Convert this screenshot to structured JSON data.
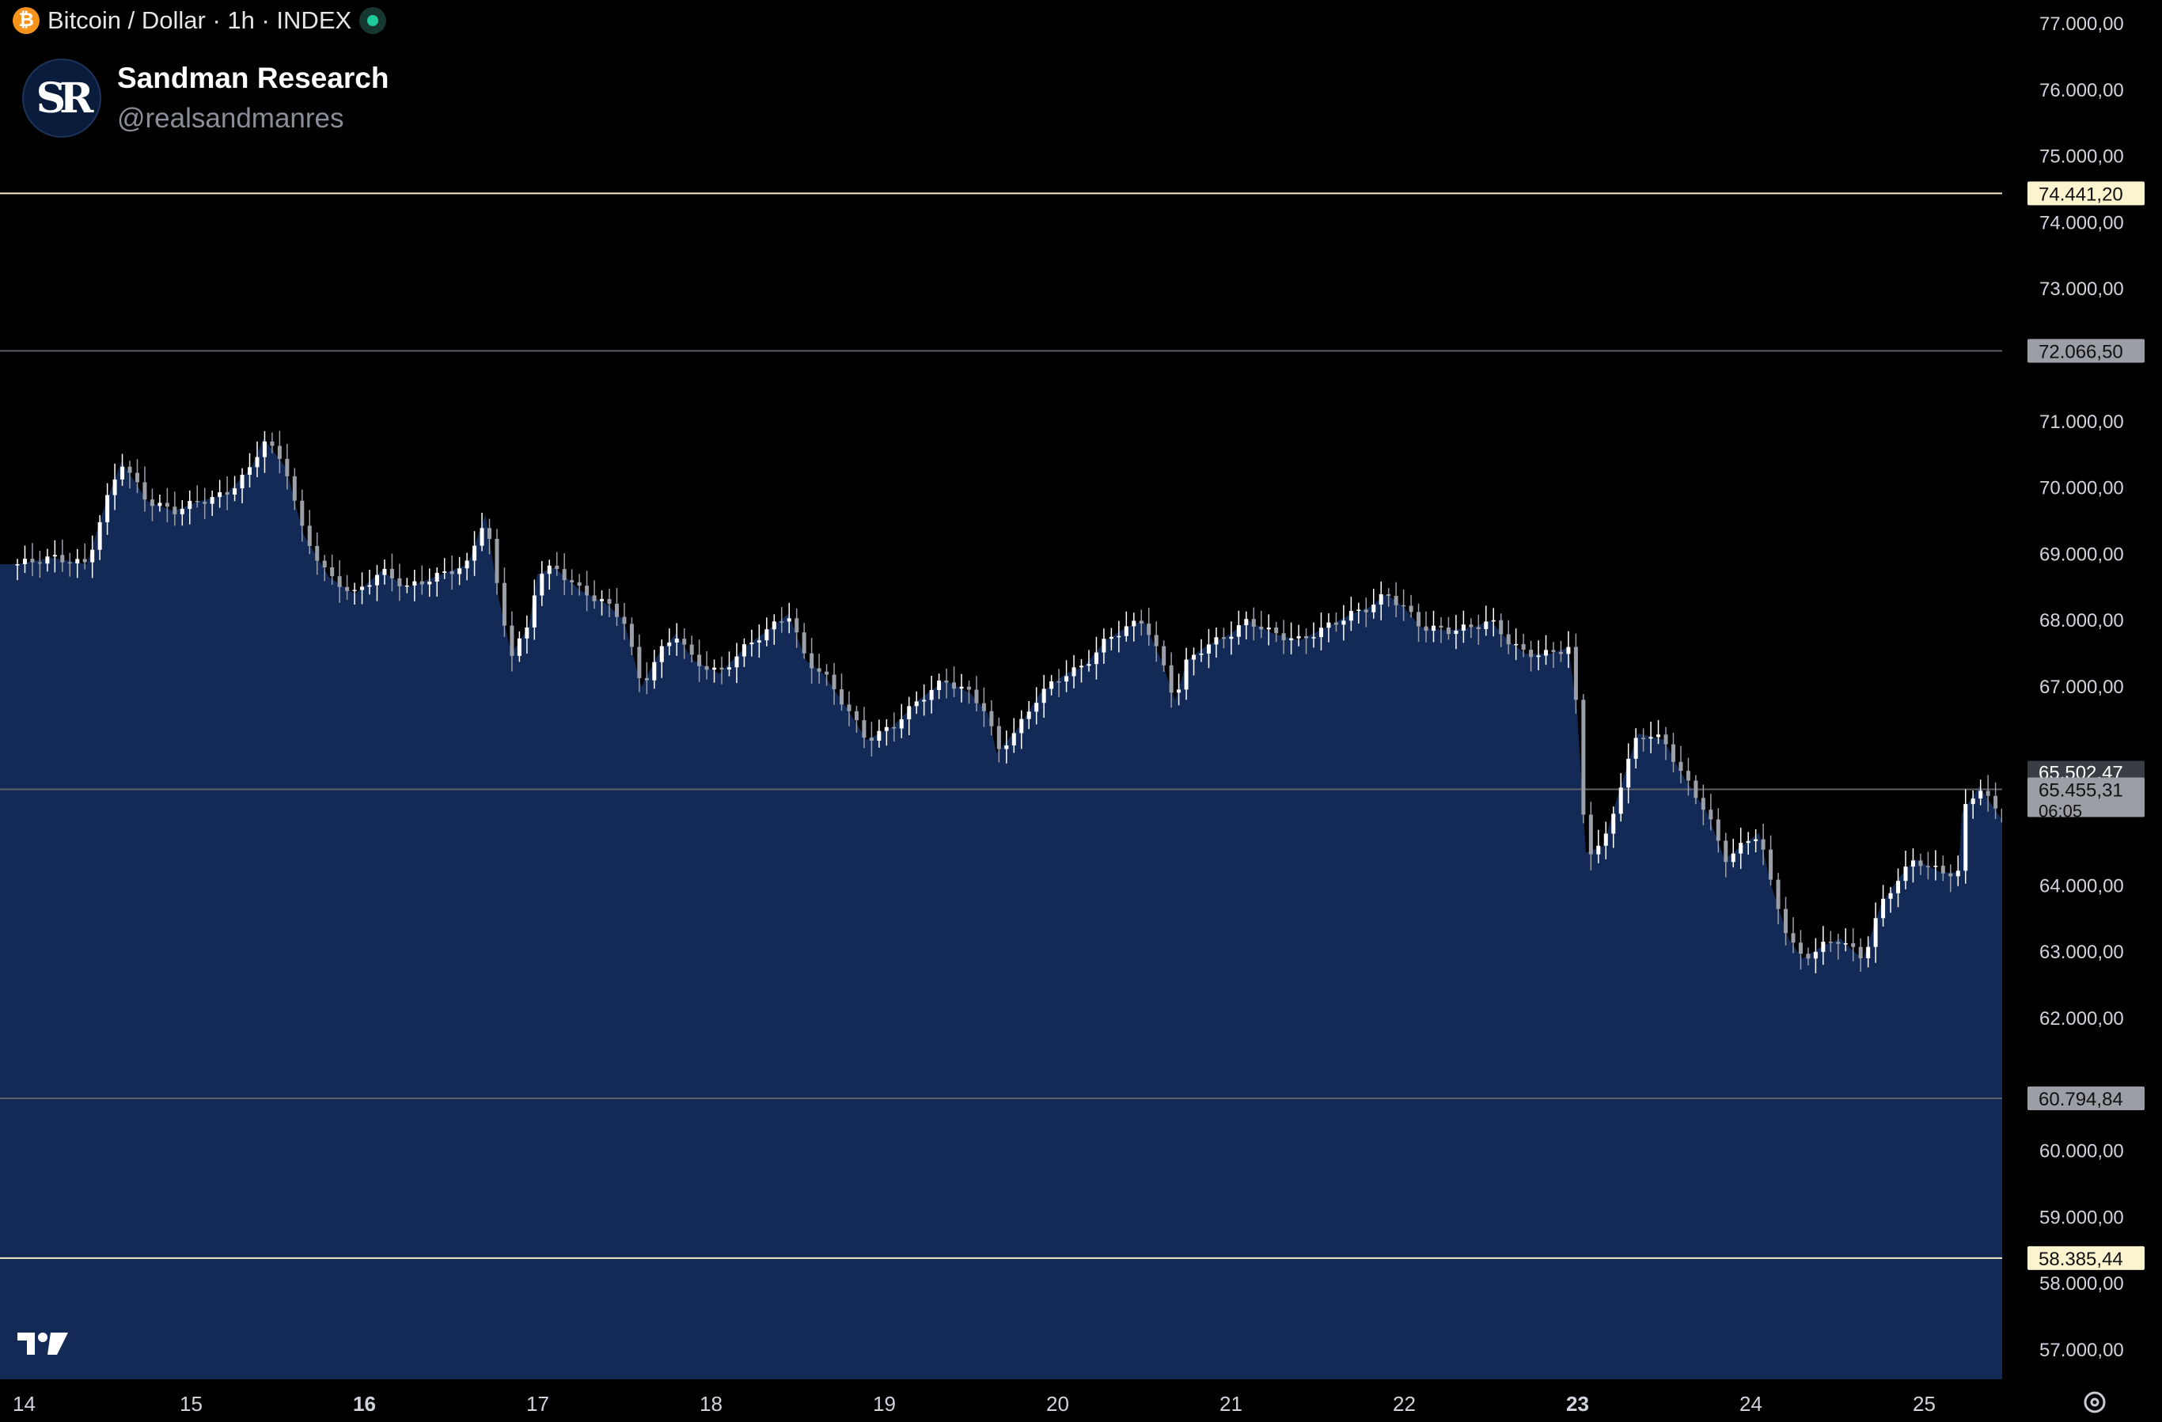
{
  "header": {
    "symbol": "Bitcoin / Dollar · 1h · INDEX",
    "btc_glyph": "₿",
    "status_color": "#1ec99a"
  },
  "brand": {
    "name": "Sandman Research",
    "handle": "@realsandmanres",
    "avatar_text": "SR"
  },
  "icons": {
    "logo": "tradingview-logo-icon",
    "settings": "gear-icon"
  },
  "colors": {
    "area_fill": "#132a57",
    "candle_up": "#ffffff",
    "candle_down": "#9ba0a8"
  },
  "chart_data": {
    "type": "candlestick-area",
    "title": "Bitcoin / Dollar · 1h · INDEX",
    "ylim": [
      56500,
      77200
    ],
    "y_ticks": [
      "77.000,00",
      "76.000,00",
      "75.000,00",
      "74.000,00",
      "73.000,00",
      "71.000,00",
      "70.000,00",
      "69.000,00",
      "68.000,00",
      "67.000,00",
      "64.000,00",
      "63.000,00",
      "62.000,00",
      "60.000,00",
      "59.000,00",
      "58.000,00",
      "57.000,00"
    ],
    "y_tick_values": [
      77000,
      76000,
      75000,
      74000,
      73000,
      71000,
      70000,
      69000,
      68000,
      67000,
      64000,
      63000,
      62000,
      60000,
      59000,
      58000,
      57000
    ],
    "x_labels": [
      "14",
      "15",
      "16",
      "17",
      "18",
      "19",
      "20",
      "21",
      "22",
      "23",
      "24",
      "25"
    ],
    "x_bold": [
      "16",
      "23"
    ],
    "price_series": [
      [
        14.0,
        68850
      ],
      [
        14.2,
        68950
      ],
      [
        14.4,
        68850
      ],
      [
        14.5,
        69700
      ],
      [
        14.6,
        70400
      ],
      [
        14.75,
        69800
      ],
      [
        14.9,
        69650
      ],
      [
        15.05,
        69800
      ],
      [
        15.2,
        69900
      ],
      [
        15.35,
        70300
      ],
      [
        15.42,
        70750
      ],
      [
        15.55,
        70300
      ],
      [
        15.65,
        69300
      ],
      [
        15.8,
        68650
      ],
      [
        15.95,
        68400
      ],
      [
        16.1,
        68750
      ],
      [
        16.25,
        68500
      ],
      [
        16.4,
        68650
      ],
      [
        16.6,
        68850
      ],
      [
        16.7,
        69600
      ],
      [
        16.78,
        68300
      ],
      [
        16.85,
        67500
      ],
      [
        16.95,
        67900
      ],
      [
        17.0,
        68700
      ],
      [
        17.1,
        68800
      ],
      [
        17.25,
        68450
      ],
      [
        17.4,
        68250
      ],
      [
        17.5,
        68000
      ],
      [
        17.6,
        67000
      ],
      [
        17.7,
        67500
      ],
      [
        17.8,
        67800
      ],
      [
        17.9,
        67400
      ],
      [
        18.05,
        67200
      ],
      [
        18.2,
        67600
      ],
      [
        18.35,
        67900
      ],
      [
        18.45,
        68100
      ],
      [
        18.55,
        67400
      ],
      [
        18.65,
        67200
      ],
      [
        18.78,
        66700
      ],
      [
        18.9,
        66200
      ],
      [
        19.05,
        66400
      ],
      [
        19.2,
        66800
      ],
      [
        19.35,
        67100
      ],
      [
        19.5,
        66900
      ],
      [
        19.6,
        66600
      ],
      [
        19.65,
        66000
      ],
      [
        19.78,
        66400
      ],
      [
        19.9,
        66900
      ],
      [
        20.05,
        67200
      ],
      [
        20.15,
        67300
      ],
      [
        20.28,
        67700
      ],
      [
        20.4,
        67900
      ],
      [
        20.5,
        68000
      ],
      [
        20.6,
        67400
      ],
      [
        20.68,
        66800
      ],
      [
        20.75,
        67400
      ],
      [
        20.85,
        67600
      ],
      [
        21.0,
        67800
      ],
      [
        21.1,
        68000
      ],
      [
        21.25,
        67800
      ],
      [
        21.4,
        67700
      ],
      [
        21.55,
        67900
      ],
      [
        21.7,
        68100
      ],
      [
        21.8,
        68200
      ],
      [
        21.9,
        68400
      ],
      [
        22.0,
        68200
      ],
      [
        22.1,
        67900
      ],
      [
        22.25,
        67850
      ],
      [
        22.4,
        67900
      ],
      [
        22.5,
        68000
      ],
      [
        22.6,
        67700
      ],
      [
        22.7,
        67500
      ],
      [
        22.85,
        67500
      ],
      [
        22.95,
        67600
      ],
      [
        23.0,
        66600
      ],
      [
        23.05,
        64500
      ],
      [
        23.15,
        64600
      ],
      [
        23.25,
        65500
      ],
      [
        23.35,
        66300
      ],
      [
        23.5,
        66200
      ],
      [
        23.6,
        65700
      ],
      [
        23.75,
        65100
      ],
      [
        23.85,
        64400
      ],
      [
        23.95,
        64600
      ],
      [
        24.05,
        64800
      ],
      [
        24.12,
        64000
      ],
      [
        24.22,
        63200
      ],
      [
        24.3,
        62900
      ],
      [
        24.42,
        63100
      ],
      [
        24.52,
        63200
      ],
      [
        24.6,
        63000
      ],
      [
        24.65,
        62900
      ],
      [
        24.75,
        63700
      ],
      [
        24.85,
        64100
      ],
      [
        24.95,
        64400
      ],
      [
        25.1,
        64200
      ],
      [
        25.2,
        64200
      ],
      [
        25.22,
        65100
      ],
      [
        25.32,
        65500
      ],
      [
        25.45,
        65000
      ],
      [
        25.55,
        65200
      ],
      [
        25.63,
        65300
      ]
    ],
    "horizontal_levels": [
      {
        "value": 74441.2,
        "label": "74.441,20",
        "kind": "yellow"
      },
      {
        "value": 72066.5,
        "label": "72.066,50",
        "kind": "gray"
      },
      {
        "value": 65455.31,
        "label": "65.455,31",
        "kind": "last",
        "countdown": "06:05"
      },
      {
        "value": 60794.84,
        "label": "60.794,84",
        "kind": "gray"
      },
      {
        "value": 58385.44,
        "label": "58.385,44",
        "kind": "yellow"
      }
    ],
    "upper_label": {
      "value": 65502.47,
      "label": "65.502,47"
    }
  }
}
